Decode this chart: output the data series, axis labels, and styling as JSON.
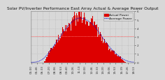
{
  "title": "Solar PV/Inverter Performance East Array Actual & Average Power Output",
  "title_fontsize": 4.2,
  "bg_color": "#d8d8d8",
  "plot_bg_color": "#d8d8d8",
  "bar_color": "#dd0000",
  "bar_edge_color": "#dd0000",
  "avg_line_color": "#0000cc",
  "avg_line2_color": "#ff6666",
  "grid_color": "#aaaaaa",
  "ylabel": "kW",
  "ylabel_fontsize": 3.5,
  "tick_fontsize": 3.0,
  "legend_fontsize": 3.2,
  "ylim": [
    0,
    6
  ],
  "num_points": 144,
  "yticks": [
    0,
    1,
    2,
    3,
    4,
    5,
    6
  ],
  "legend_entries": [
    "Actual Power",
    "Average Power"
  ],
  "legend_colors": [
    "#dd0000",
    "#0000cc"
  ]
}
